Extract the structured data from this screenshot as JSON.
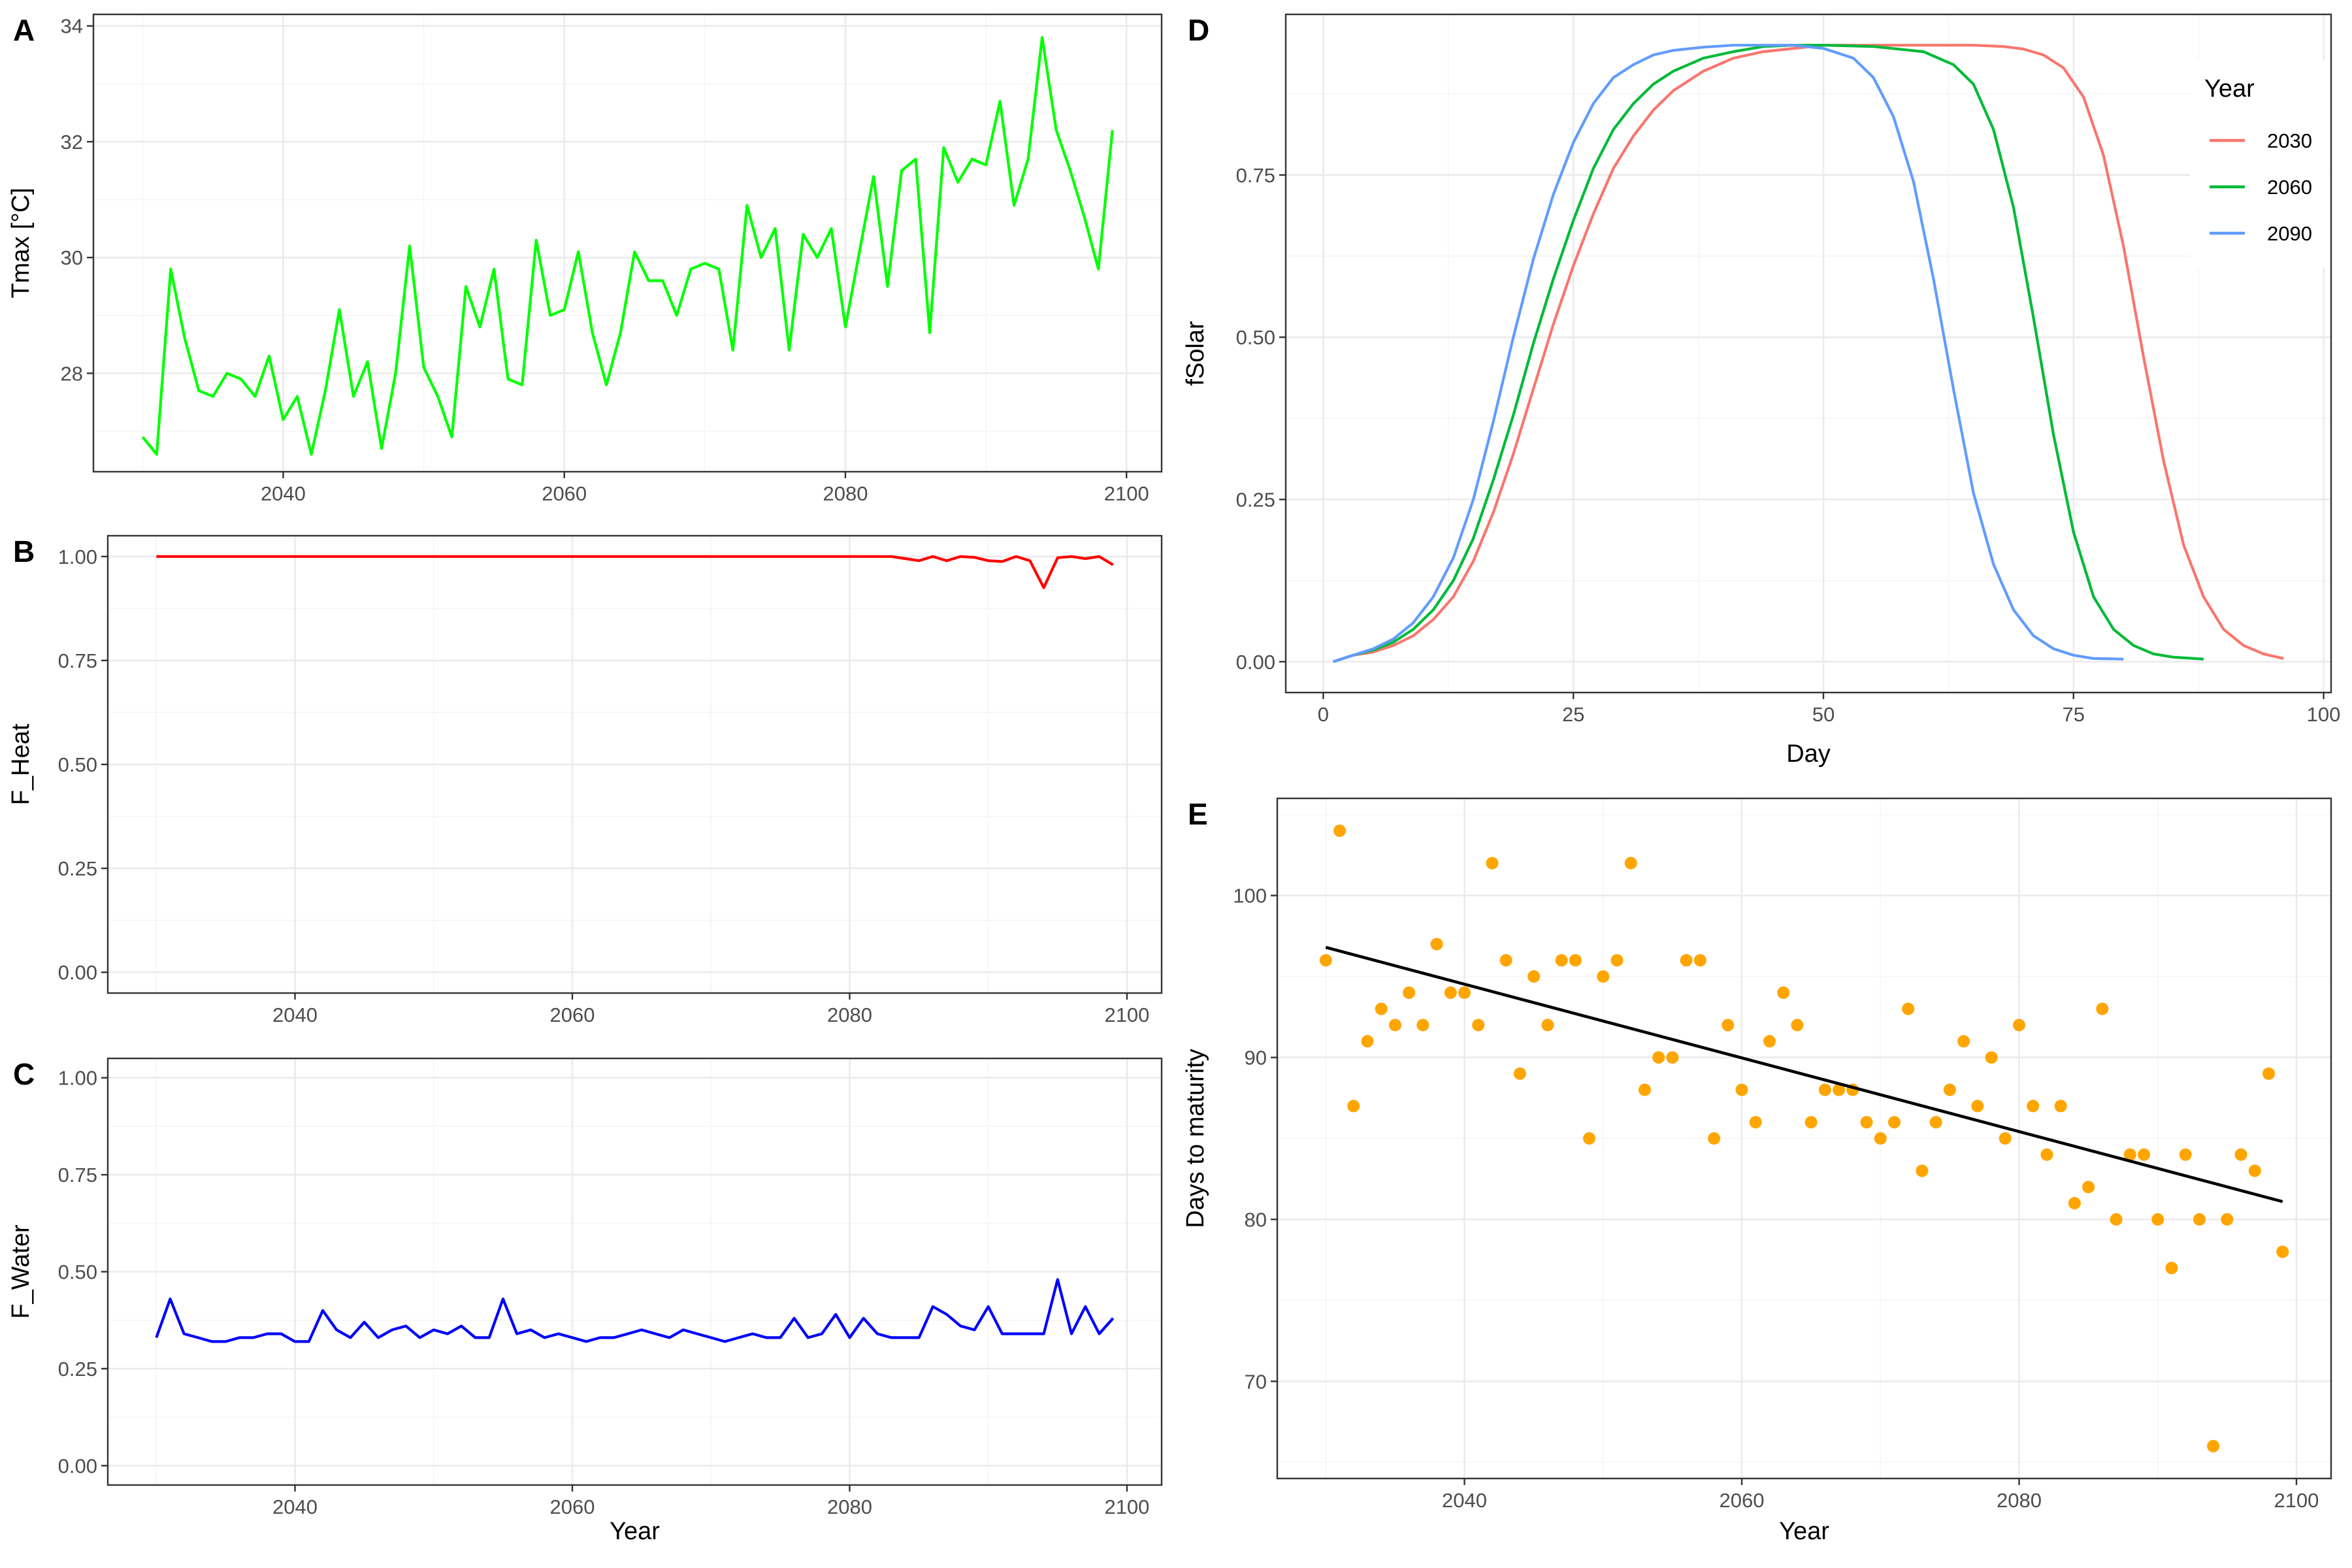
{
  "chart_data": [
    {
      "id": "A",
      "panel_tag": "A",
      "type": "line",
      "xlabel": "",
      "ylabel": "Tmax [°C]",
      "xlim": [
        2026.5,
        2102.5
      ],
      "ylim": [
        26.3,
        34.2
      ],
      "x_ticks": [
        2040,
        2060,
        2080,
        2100
      ],
      "y_ticks": [
        28,
        30,
        32,
        34
      ],
      "series": [
        {
          "color": "#00ff00",
          "x": [
            2030,
            2031,
            2032,
            2033,
            2034,
            2035,
            2036,
            2037,
            2038,
            2039,
            2040,
            2041,
            2042,
            2043,
            2044,
            2045,
            2046,
            2047,
            2048,
            2049,
            2050,
            2051,
            2052,
            2053,
            2054,
            2055,
            2056,
            2057,
            2058,
            2059,
            2060,
            2061,
            2062,
            2063,
            2064,
            2065,
            2066,
            2067,
            2068,
            2069,
            2070,
            2071,
            2072,
            2073,
            2074,
            2075,
            2076,
            2077,
            2078,
            2079,
            2080,
            2081,
            2082,
            2083,
            2084,
            2085,
            2086,
            2087,
            2088,
            2089,
            2090,
            2091,
            2092,
            2093,
            2094,
            2095,
            2096,
            2097,
            2098,
            2099
          ],
          "y": [
            26.9,
            26.6,
            29.8,
            28.6,
            27.7,
            27.6,
            28.0,
            27.9,
            27.6,
            28.3,
            27.2,
            27.6,
            26.6,
            27.7,
            29.1,
            27.6,
            28.2,
            26.7,
            28.0,
            30.2,
            28.1,
            27.6,
            26.9,
            29.5,
            28.8,
            29.8,
            27.9,
            27.8,
            30.3,
            29.0,
            29.1,
            30.1,
            28.7,
            27.8,
            28.7,
            30.1,
            29.6,
            29.6,
            29.0,
            29.8,
            29.9,
            29.8,
            28.4,
            30.9,
            30.0,
            30.5,
            28.4,
            30.4,
            30.0,
            30.5,
            28.8,
            30.1,
            31.4,
            29.5,
            31.5,
            31.7,
            28.7,
            31.9,
            31.3,
            31.7,
            31.6,
            32.7,
            30.9,
            31.7,
            33.8,
            32.2,
            31.5,
            30.7,
            29.8,
            32.2
          ]
        }
      ]
    },
    {
      "id": "B",
      "panel_tag": "B",
      "type": "line",
      "xlabel": "",
      "ylabel": "F_Heat",
      "xlim": [
        2026.5,
        2102.5
      ],
      "ylim": [
        -0.05,
        1.05
      ],
      "x_ticks": [
        2040,
        2060,
        2080,
        2100
      ],
      "y_ticks": [
        0.0,
        0.25,
        0.5,
        0.75,
        1.0
      ],
      "y_tick_labels": [
        "0.00",
        "0.25",
        "0.50",
        "0.75",
        "1.00"
      ],
      "series": [
        {
          "color": "#ff0000",
          "x": [
            2030,
            2031,
            2032,
            2033,
            2034,
            2035,
            2036,
            2037,
            2038,
            2039,
            2040,
            2041,
            2042,
            2043,
            2044,
            2045,
            2046,
            2047,
            2048,
            2049,
            2050,
            2051,
            2052,
            2053,
            2054,
            2055,
            2056,
            2057,
            2058,
            2059,
            2060,
            2061,
            2062,
            2063,
            2064,
            2065,
            2066,
            2067,
            2068,
            2069,
            2070,
            2071,
            2072,
            2073,
            2074,
            2075,
            2076,
            2077,
            2078,
            2079,
            2080,
            2081,
            2082,
            2083,
            2084,
            2085,
            2086,
            2087,
            2088,
            2089,
            2090,
            2091,
            2092,
            2093,
            2094,
            2095,
            2096,
            2097,
            2098,
            2099
          ],
          "y": [
            1,
            1,
            1,
            1,
            1,
            1,
            1,
            1,
            1,
            1,
            1,
            1,
            1,
            1,
            1,
            1,
            1,
            1,
            1,
            1,
            1,
            1,
            1,
            1,
            1,
            1,
            1,
            1,
            1,
            1,
            1,
            1,
            1,
            1,
            1,
            1,
            1,
            1,
            1,
            1,
            1,
            1,
            1,
            1,
            1,
            1,
            1,
            1,
            1,
            1,
            1,
            1,
            1,
            1,
            0.995,
            0.99,
            1,
            0.99,
            1,
            0.998,
            0.99,
            0.988,
            1,
            0.99,
            0.925,
            0.997,
            1.0,
            0.995,
            1.0,
            0.98
          ]
        }
      ]
    },
    {
      "id": "C",
      "panel_tag": "C",
      "type": "line",
      "xlabel": "Year",
      "ylabel": "F_Water",
      "xlim": [
        2026.5,
        2102.5
      ],
      "ylim": [
        -0.05,
        1.05
      ],
      "x_ticks": [
        2040,
        2060,
        2080,
        2100
      ],
      "y_ticks": [
        0.0,
        0.25,
        0.5,
        0.75,
        1.0
      ],
      "y_tick_labels": [
        "0.00",
        "0.25",
        "0.50",
        "0.75",
        "1.00"
      ],
      "series": [
        {
          "color": "#0000ff",
          "x": [
            2030,
            2031,
            2032,
            2033,
            2034,
            2035,
            2036,
            2037,
            2038,
            2039,
            2040,
            2041,
            2042,
            2043,
            2044,
            2045,
            2046,
            2047,
            2048,
            2049,
            2050,
            2051,
            2052,
            2053,
            2054,
            2055,
            2056,
            2057,
            2058,
            2059,
            2060,
            2061,
            2062,
            2063,
            2064,
            2065,
            2066,
            2067,
            2068,
            2069,
            2070,
            2071,
            2072,
            2073,
            2074,
            2075,
            2076,
            2077,
            2078,
            2079,
            2080,
            2081,
            2082,
            2083,
            2084,
            2085,
            2086,
            2087,
            2088,
            2089,
            2090,
            2091,
            2092,
            2093,
            2094,
            2095,
            2096,
            2097,
            2098,
            2099
          ],
          "y": [
            0.33,
            0.43,
            0.34,
            0.33,
            0.32,
            0.32,
            0.33,
            0.33,
            0.34,
            0.34,
            0.32,
            0.32,
            0.4,
            0.35,
            0.33,
            0.37,
            0.33,
            0.35,
            0.36,
            0.33,
            0.35,
            0.34,
            0.36,
            0.33,
            0.33,
            0.43,
            0.34,
            0.35,
            0.33,
            0.34,
            0.33,
            0.32,
            0.33,
            0.33,
            0.34,
            0.35,
            0.34,
            0.33,
            0.35,
            0.34,
            0.33,
            0.32,
            0.33,
            0.34,
            0.33,
            0.33,
            0.38,
            0.33,
            0.34,
            0.39,
            0.33,
            0.38,
            0.34,
            0.33,
            0.33,
            0.33,
            0.41,
            0.39,
            0.36,
            0.35,
            0.41,
            0.34,
            0.34,
            0.34,
            0.34,
            0.48,
            0.34,
            0.41,
            0.34,
            0.38
          ]
        }
      ]
    },
    {
      "id": "D",
      "panel_tag": "D",
      "type": "line",
      "xlabel": "Day",
      "ylabel": "fSolar",
      "xlim": [
        -3.75,
        100.75
      ],
      "ylim": [
        -0.0475,
        0.9975
      ],
      "x_ticks": [
        0,
        25,
        50,
        75,
        100
      ],
      "y_ticks": [
        0.0,
        0.25,
        0.5,
        0.75
      ],
      "y_tick_labels": [
        "0.00",
        "0.25",
        "0.50",
        "0.75"
      ],
      "legend": {
        "title": "Year",
        "position": "top-right"
      },
      "series": [
        {
          "name": "2030",
          "color": "#f8766d",
          "x": [
            1,
            3,
            5,
            7,
            9,
            11,
            13,
            15,
            17,
            19,
            21,
            23,
            25,
            27,
            29,
            31,
            33,
            35,
            38,
            41,
            44,
            47,
            50,
            55,
            60,
            65,
            68,
            70,
            72,
            74,
            76,
            78,
            80,
            82,
            84,
            86,
            88,
            90,
            92,
            94,
            96
          ],
          "y": [
            0.0,
            0.01,
            0.015,
            0.025,
            0.04,
            0.065,
            0.1,
            0.155,
            0.23,
            0.32,
            0.42,
            0.52,
            0.61,
            0.69,
            0.76,
            0.81,
            0.85,
            0.88,
            0.91,
            0.93,
            0.94,
            0.945,
            0.95,
            0.95,
            0.95,
            0.95,
            0.948,
            0.944,
            0.935,
            0.915,
            0.87,
            0.78,
            0.64,
            0.47,
            0.31,
            0.18,
            0.1,
            0.05,
            0.025,
            0.012,
            0.005
          ]
        },
        {
          "name": "2060",
          "color": "#00ba38",
          "x": [
            1,
            3,
            5,
            7,
            9,
            11,
            13,
            15,
            17,
            19,
            21,
            23,
            25,
            27,
            29,
            31,
            33,
            35,
            38,
            41,
            44,
            47,
            50,
            55,
            60,
            63,
            65,
            67,
            69,
            71,
            73,
            75,
            77,
            79,
            81,
            83,
            85,
            88
          ],
          "y": [
            0.0,
            0.01,
            0.018,
            0.03,
            0.05,
            0.08,
            0.125,
            0.19,
            0.28,
            0.38,
            0.49,
            0.59,
            0.68,
            0.76,
            0.82,
            0.86,
            0.89,
            0.91,
            0.93,
            0.94,
            0.948,
            0.95,
            0.95,
            0.948,
            0.94,
            0.92,
            0.89,
            0.82,
            0.7,
            0.53,
            0.35,
            0.2,
            0.1,
            0.05,
            0.025,
            0.012,
            0.007,
            0.004
          ]
        },
        {
          "name": "2090",
          "color": "#619cff",
          "x": [
            1,
            3,
            5,
            7,
            9,
            11,
            13,
            15,
            17,
            19,
            21,
            23,
            25,
            27,
            29,
            31,
            33,
            35,
            38,
            41,
            44,
            47,
            50,
            53,
            55,
            57,
            59,
            61,
            63,
            65,
            67,
            69,
            71,
            73,
            75,
            77,
            80
          ],
          "y": [
            0.0,
            0.01,
            0.02,
            0.035,
            0.06,
            0.1,
            0.16,
            0.25,
            0.37,
            0.5,
            0.62,
            0.72,
            0.8,
            0.86,
            0.9,
            0.92,
            0.935,
            0.942,
            0.947,
            0.95,
            0.95,
            0.95,
            0.945,
            0.93,
            0.9,
            0.84,
            0.74,
            0.59,
            0.42,
            0.26,
            0.15,
            0.08,
            0.04,
            0.02,
            0.01,
            0.005,
            0.004
          ]
        }
      ]
    },
    {
      "id": "E",
      "panel_tag": "E",
      "type": "scatter",
      "xlabel": "Year",
      "ylabel": "Days to maturity",
      "xlim": [
        2026.5,
        2102.5
      ],
      "ylim": [
        64.0,
        106.0
      ],
      "x_ticks": [
        2040,
        2060,
        2080,
        2100
      ],
      "y_ticks": [
        70,
        80,
        90,
        100
      ],
      "series": [
        {
          "color": "#ffa500",
          "x": [
            2030,
            2031,
            2032,
            2033,
            2034,
            2035,
            2036,
            2037,
            2038,
            2039,
            2040,
            2041,
            2042,
            2043,
            2044,
            2045,
            2046,
            2047,
            2048,
            2049,
            2050,
            2051,
            2052,
            2053,
            2054,
            2055,
            2056,
            2057,
            2058,
            2059,
            2060,
            2061,
            2062,
            2063,
            2064,
            2065,
            2066,
            2067,
            2068,
            2069,
            2070,
            2071,
            2072,
            2073,
            2074,
            2075,
            2076,
            2077,
            2078,
            2079,
            2080,
            2081,
            2082,
            2083,
            2084,
            2085,
            2086,
            2087,
            2088,
            2089,
            2090,
            2091,
            2092,
            2093,
            2094,
            2095,
            2096,
            2097,
            2098,
            2099
          ],
          "y": [
            96,
            104,
            87,
            91,
            93,
            92,
            94,
            92,
            97,
            94,
            94,
            92,
            102,
            96,
            89,
            95,
            92,
            96,
            96,
            85,
            95,
            96,
            102,
            88,
            90,
            90,
            96,
            96,
            85,
            92,
            88,
            86,
            91,
            94,
            92,
            86,
            88,
            88,
            88,
            86,
            85,
            86,
            93,
            83,
            86,
            88,
            91,
            87,
            90,
            85,
            92,
            87,
            84,
            87,
            81,
            82,
            93,
            80,
            84,
            84,
            80,
            77,
            84,
            80,
            66,
            80,
            84,
            83,
            89,
            78
          ]
        }
      ],
      "trend_line": {
        "color": "#000000",
        "x": [
          2030,
          2099
        ],
        "y": [
          96.8,
          81.1
        ]
      }
    }
  ]
}
